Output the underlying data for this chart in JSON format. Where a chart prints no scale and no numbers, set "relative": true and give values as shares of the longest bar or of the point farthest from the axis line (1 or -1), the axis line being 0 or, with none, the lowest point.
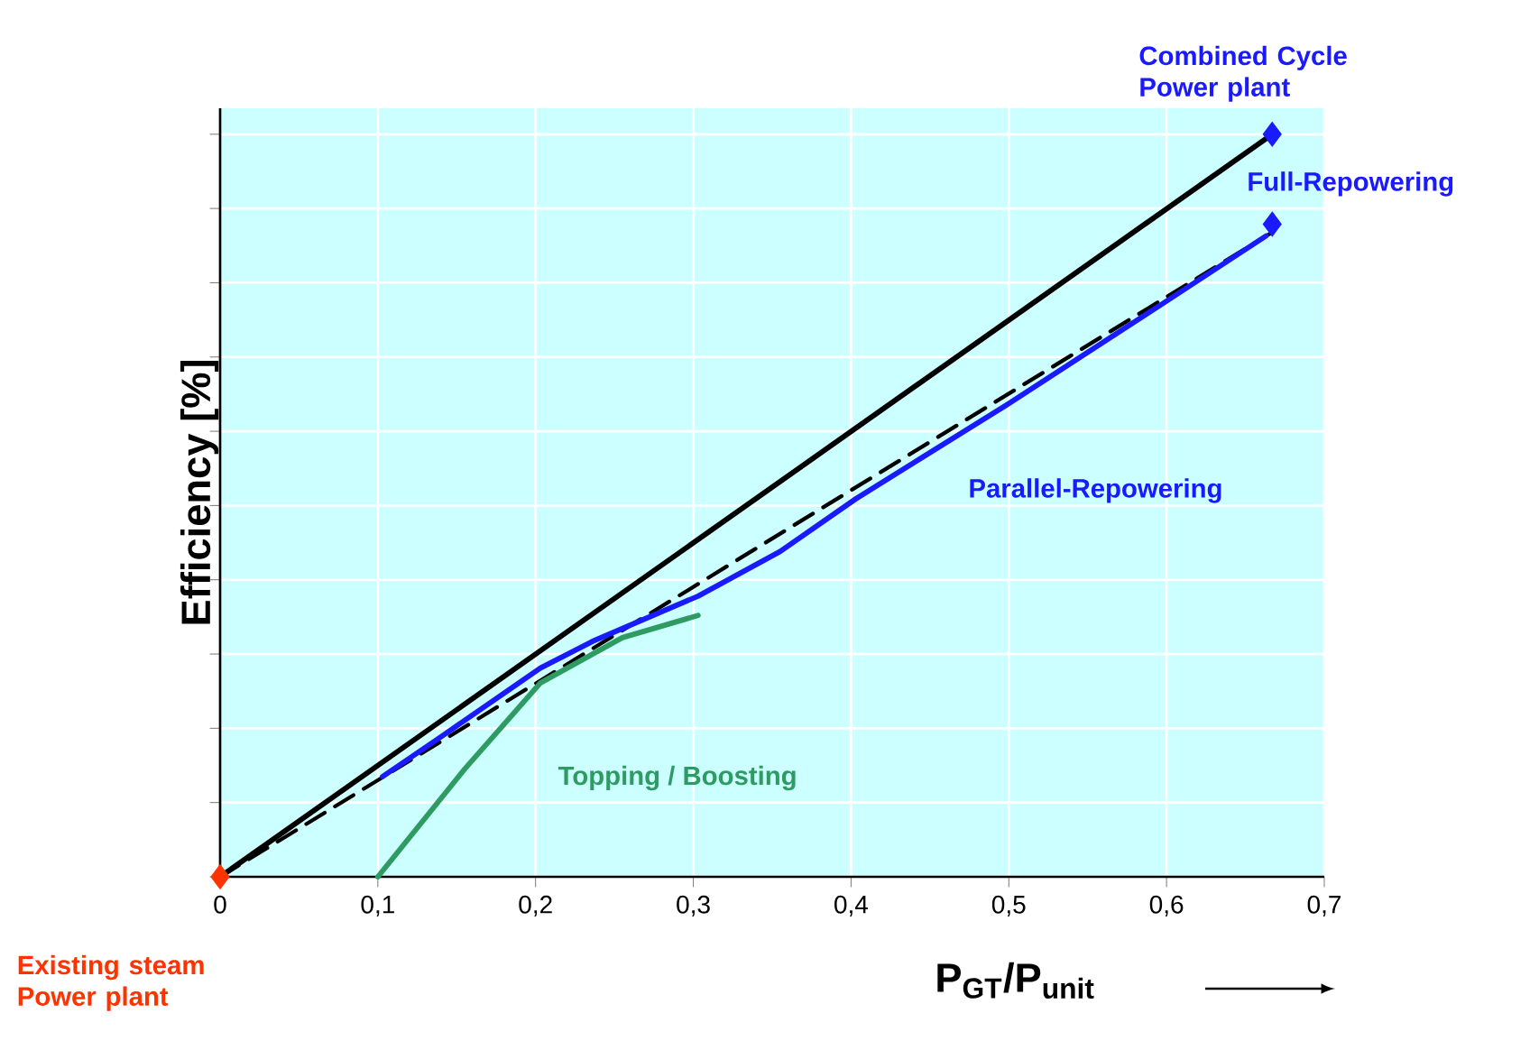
{
  "chart_data": {
    "type": "line",
    "relative": true,
    "xlabel": "**P$_{GT}$/P$_{unit}$**",
    "ylabel": "Efficiency [%]",
    "xlim": [
      0,
      0.7
    ],
    "xticks": [
      0,
      {
        "value": 0.1,
        "label": "0,1"
      },
      {
        "value": 0.2,
        "label": "0,2"
      },
      {
        "value": 0.3,
        "label": "0,3"
      },
      {
        "value": 0.4,
        "label": "0,4"
      },
      {
        "value": 0.5,
        "label": "0,5"
      },
      {
        "value": 0.6,
        "label": "0,6"
      },
      {
        "value": 0.7,
        "label": "0,7"
      }
    ],
    "grid": true,
    "tick_labels": "x",
    "series": [
      {
        "color": "#000000",
        "line_style": "solid",
        "marker": "none",
        "x": [
          0,
          0.667
        ],
        "values": [
          0,
          1
        ]
      },
      {
        "color": "#000000",
        "line_style": "dashed",
        "marker": "none",
        "x": [
          0,
          0.667
        ],
        "values": [
          0,
          0.868
        ]
      },
      {
        "name": "Parallel-Repowering",
        "color": "#1a1aff",
        "line_style": "solid",
        "marker": "none",
        "x": [
          0.103,
          0.141,
          0.203,
          0.236,
          0.303,
          0.355,
          0.403,
          0.499,
          0.594,
          0.663
        ],
        "values": [
          0.135,
          0.19,
          0.281,
          0.317,
          0.378,
          0.438,
          0.509,
          0.636,
          0.767,
          0.863
        ]
      },
      {
        "name": "Topping / Boosting",
        "color": "#2e9b62",
        "line_style": "solid",
        "marker": "none",
        "x": [
          0.1,
          0.155,
          0.203,
          0.255,
          0.303
        ],
        "values": [
          0,
          0.145,
          0.261,
          0.322,
          0.352
        ]
      },
      {
        "type": "scatter",
        "name": "Existing steam Power plant",
        "color": "#ff3300",
        "marker": "diamond",
        "x": [
          0
        ],
        "values": [
          0
        ]
      },
      {
        "type": "scatter",
        "name": "Combined Cycle Power plant",
        "color": "#1a1aff",
        "marker": "diamond",
        "x": [
          0.667
        ],
        "values": [
          1
        ]
      },
      {
        "type": "scatter",
        "name": "Full-Repowering",
        "color": "#1a1aff",
        "marker": "diamond",
        "x": [
          0.667
        ],
        "values": [
          0.879
        ]
      }
    ]
  }
}
